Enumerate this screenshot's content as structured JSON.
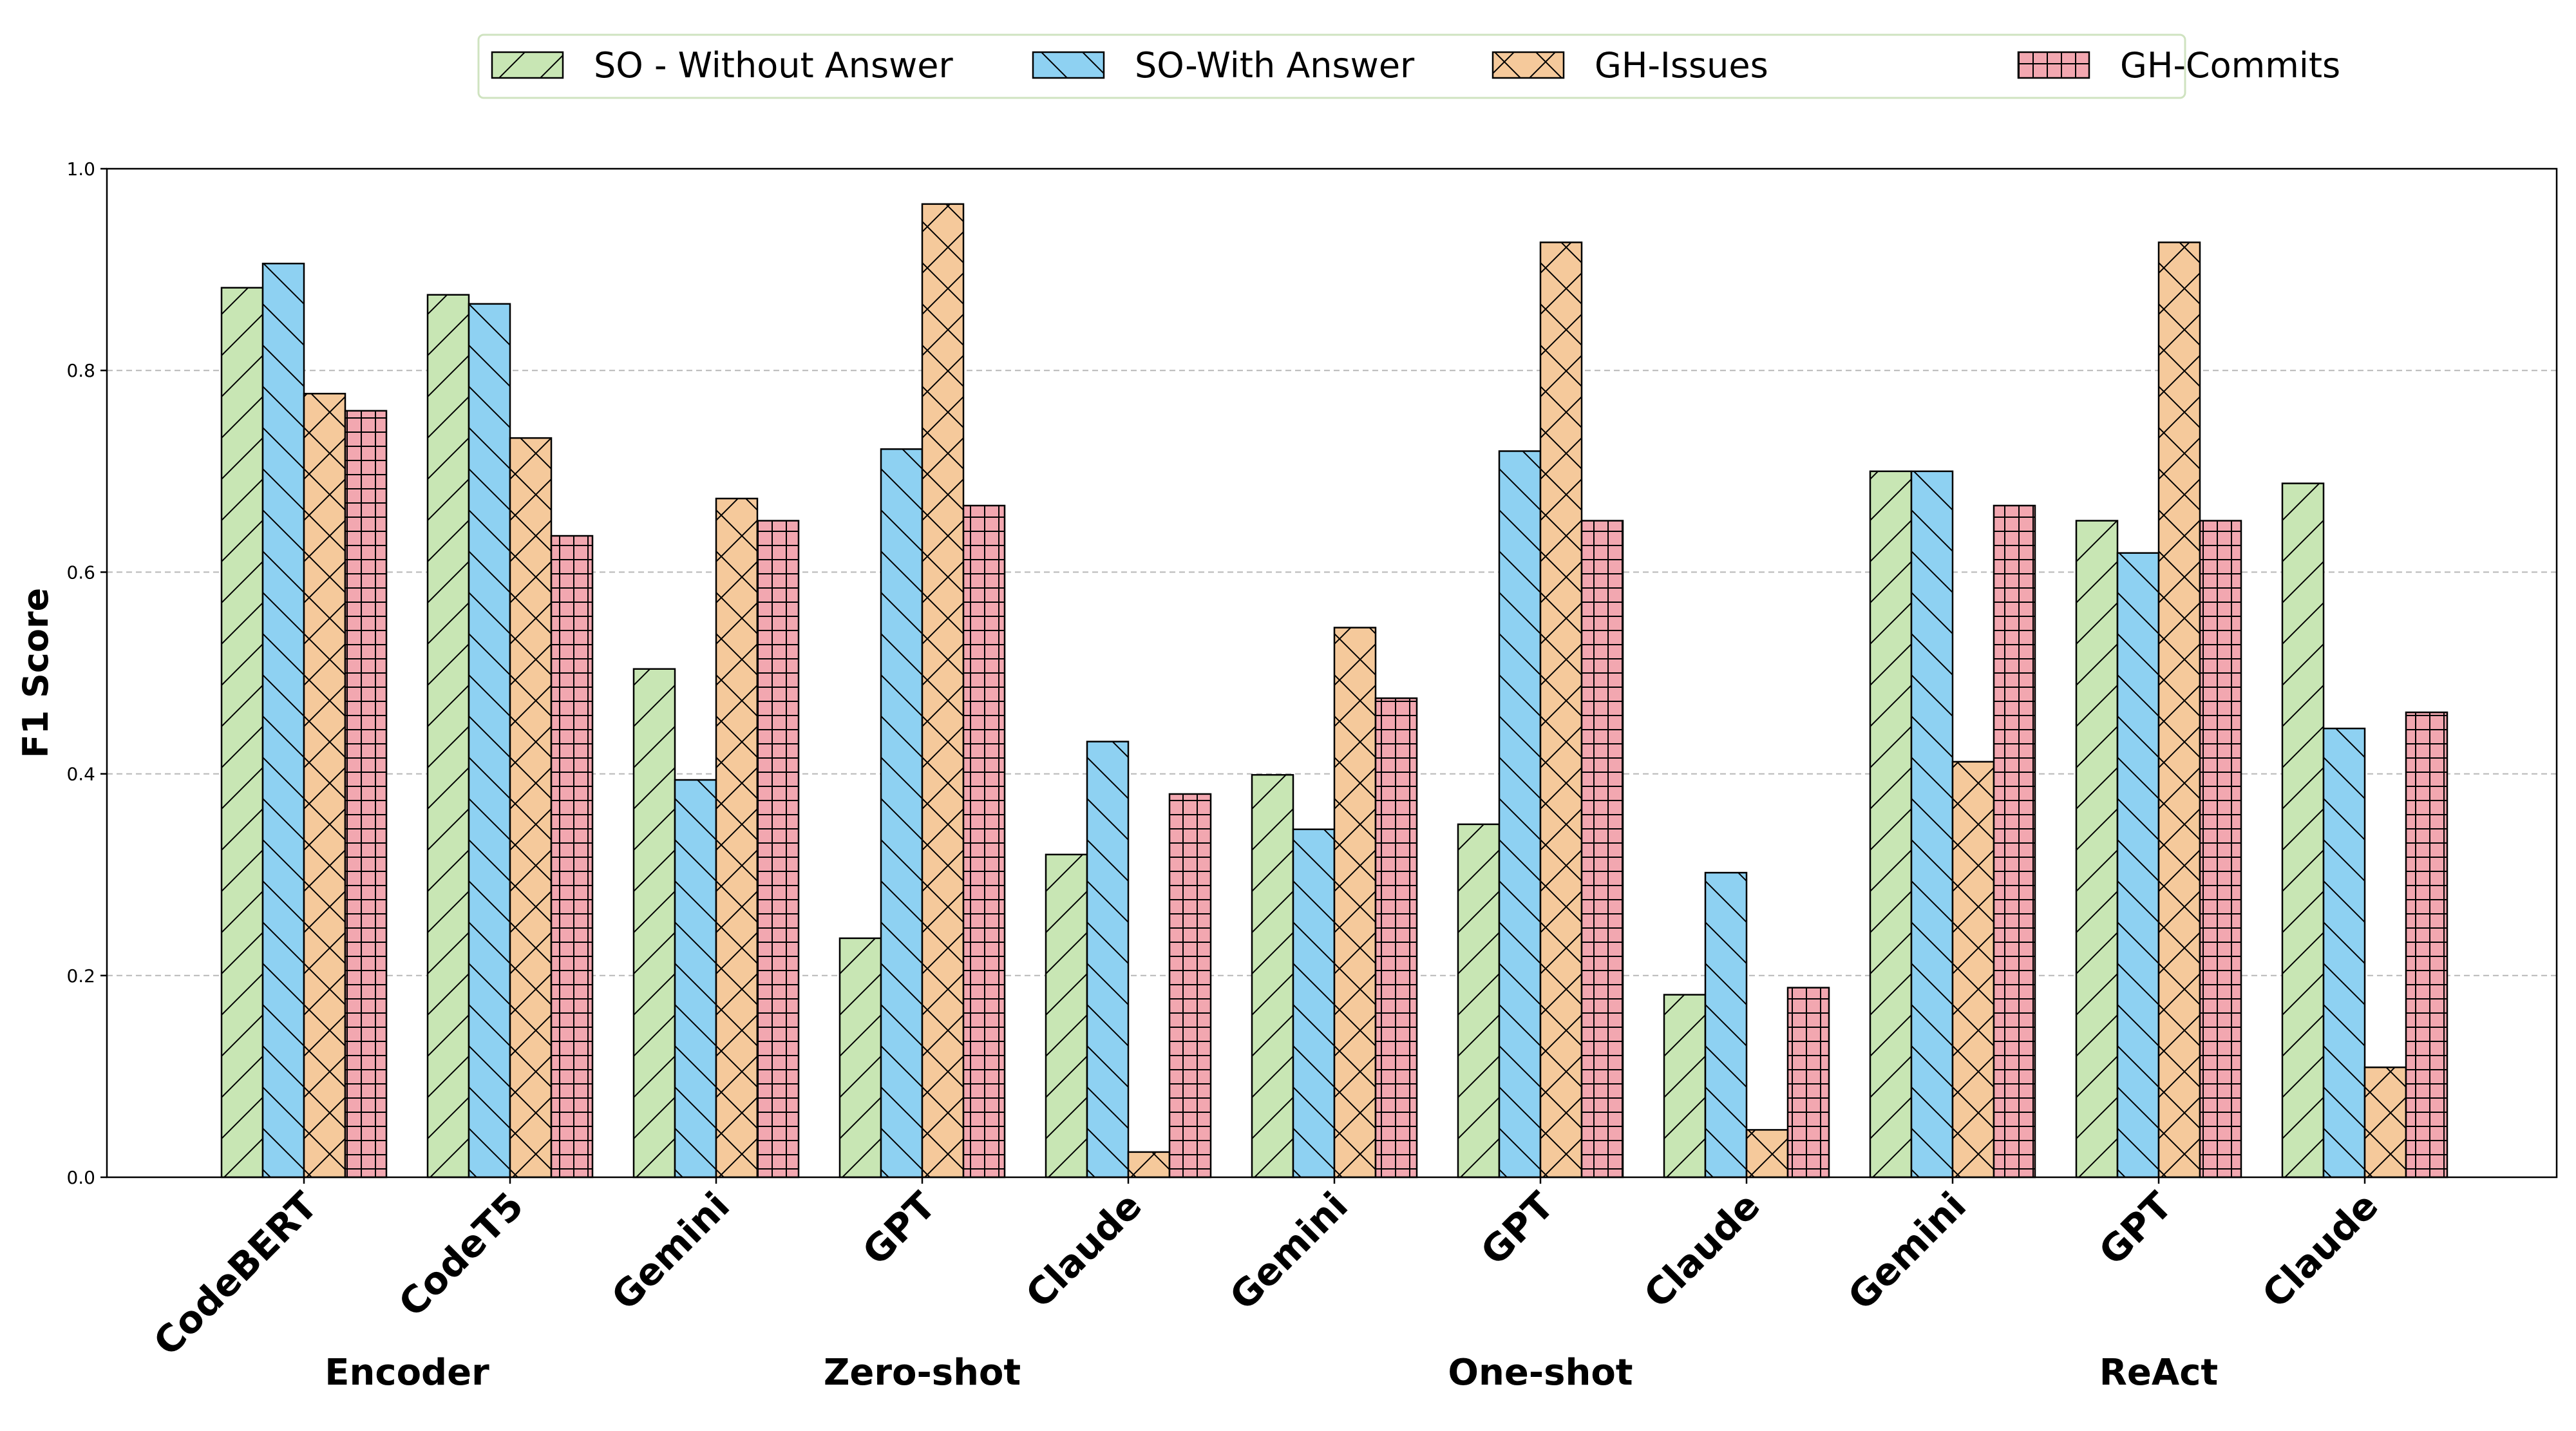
{
  "chart_data": {
    "type": "bar",
    "title": "",
    "xlabel": "",
    "ylabel": "F1 Score",
    "ylim": [
      0,
      1.0
    ],
    "yticks": [
      "0.0",
      "0.2",
      "0.4",
      "0.6",
      "0.8",
      "1.0"
    ],
    "grid": "horizontal dashed",
    "legend_position": "top-center",
    "categories": [
      "CodeBERT",
      "CodeT5",
      "Gemini",
      "GPT",
      "Claude",
      "Gemini",
      "GPT",
      "Claude",
      "Gemini",
      "GPT",
      "Claude"
    ],
    "groups": [
      {
        "label": "Encoder",
        "categories": [
          0,
          1
        ]
      },
      {
        "label": "Zero-shot",
        "categories": [
          2,
          3,
          4
        ]
      },
      {
        "label": "One-shot",
        "categories": [
          5,
          6,
          7
        ]
      },
      {
        "label": "ReAct",
        "categories": [
          8,
          9,
          10
        ]
      }
    ],
    "series": [
      {
        "name": "SO - Without Answer",
        "color": "#c8e6b4",
        "hatch": "diagonal-forward",
        "values": [
          0.882,
          0.875,
          0.504,
          0.237,
          0.32,
          0.399,
          0.35,
          0.181,
          0.7,
          0.651,
          0.688
        ]
      },
      {
        "name": "SO-With Answer",
        "color": "#8ed1f2",
        "hatch": "diagonal-back",
        "values": [
          0.906,
          0.866,
          0.394,
          0.722,
          0.432,
          0.345,
          0.72,
          0.302,
          0.7,
          0.619,
          0.445
        ]
      },
      {
        "name": "GH-Issues",
        "color": "#f5c99b",
        "hatch": "cross-diagonal",
        "values": [
          0.777,
          0.733,
          0.673,
          0.965,
          0.025,
          0.545,
          0.927,
          0.047,
          0.412,
          0.927,
          0.109
        ]
      },
      {
        "name": "GH-Commits",
        "color": "#f2a7b0",
        "hatch": "grid",
        "values": [
          0.76,
          0.636,
          0.651,
          0.666,
          0.38,
          0.475,
          0.651,
          0.188,
          0.666,
          0.651,
          0.461
        ]
      }
    ]
  }
}
